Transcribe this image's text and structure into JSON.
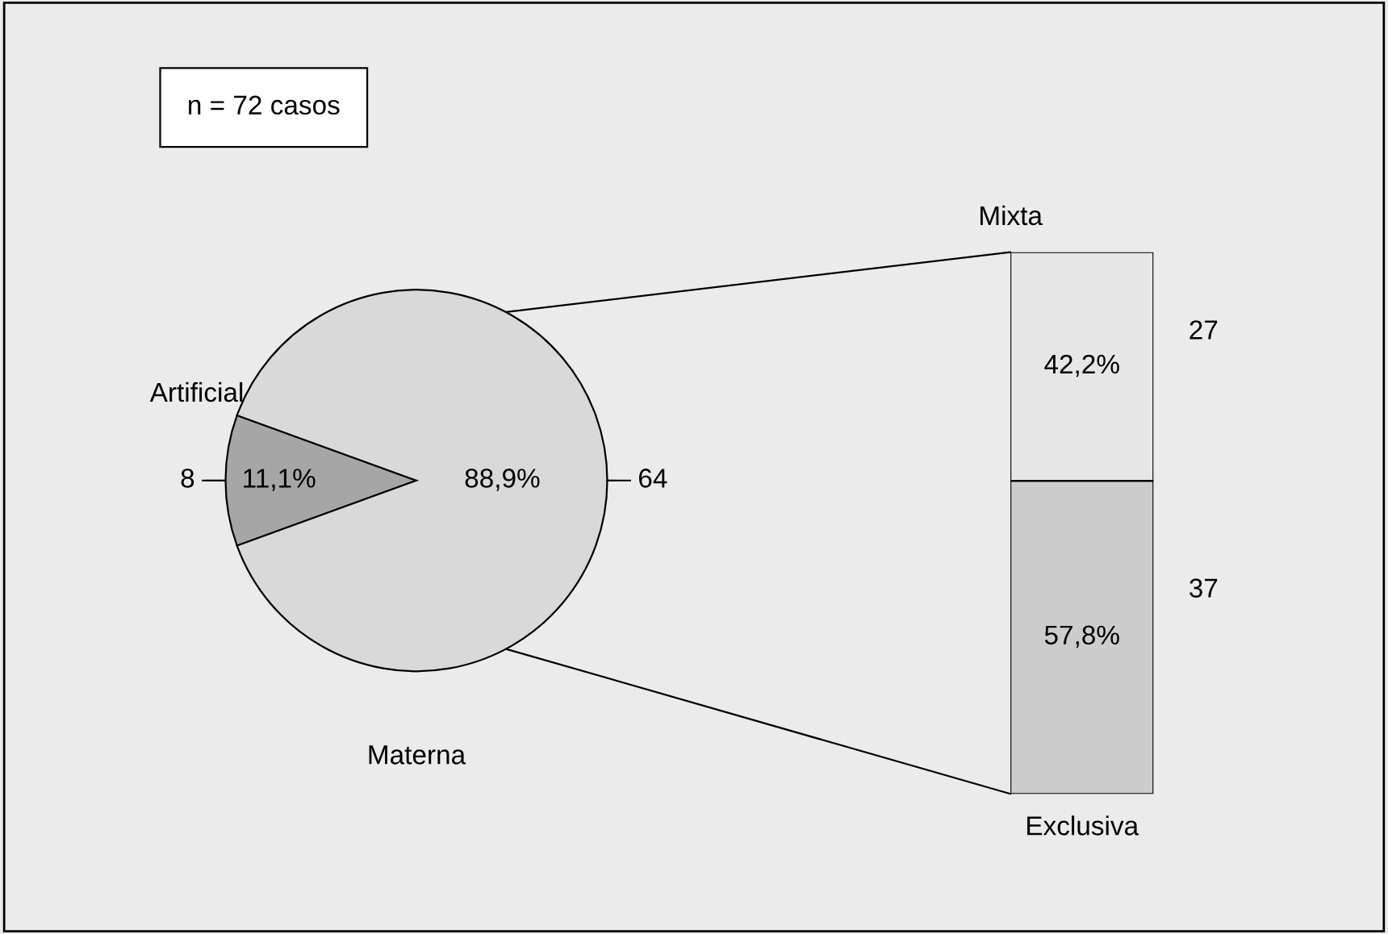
{
  "chart_data": [
    {
      "type": "pie",
      "categories": [
        "Artificial",
        "Materna"
      ],
      "values": [
        11.1,
        88.9
      ],
      "colors": [
        "#a6a6a6",
        "#d9d9d9"
      ],
      "value_labels": [
        "11,1%",
        "88,9%"
      ],
      "annotations": [
        "8",
        "64",
        "n = 72 casos"
      ]
    },
    {
      "type": "bar",
      "stacked": true,
      "categories": [
        null
      ],
      "annotations": [
        "37",
        "27"
      ],
      "series": [
        {
          "name": "Exclusiva",
          "color": "#cccccc",
          "values": [
            57.8
          ],
          "value_labels": [
            "57,8%"
          ]
        },
        {
          "name": "Mixta",
          "color": "#e6e6e6",
          "values": [
            42.2
          ],
          "value_labels": [
            "42,2%"
          ]
        }
      ]
    }
  ]
}
